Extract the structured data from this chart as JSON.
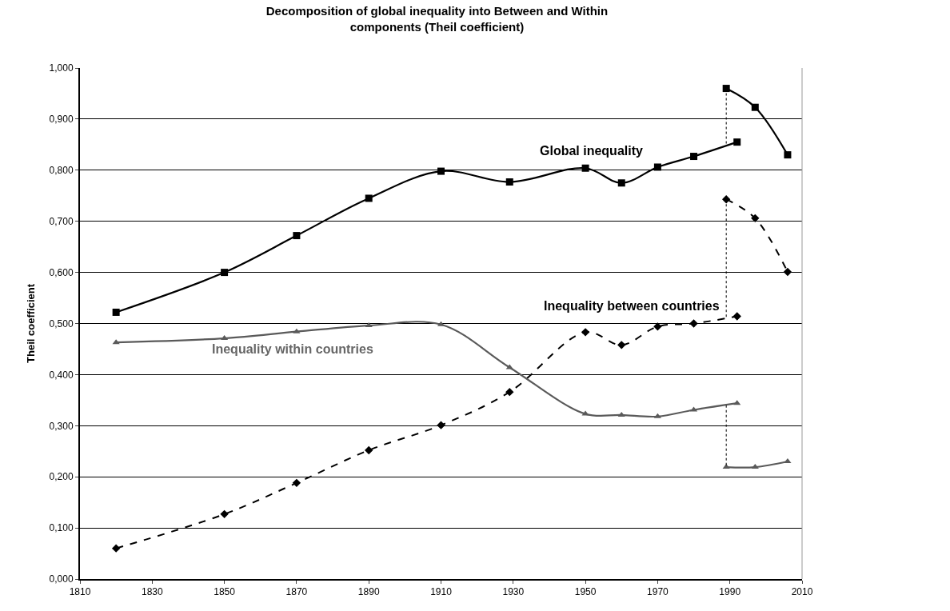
{
  "chart_data": {
    "type": "line",
    "title": "Decomposition of global inequality into Between and Within\ncomponents (Theil coefficient)",
    "ylabel": "Theil coefficient",
    "xlim": [
      1810,
      2010
    ],
    "xticks": [
      1810,
      1830,
      1850,
      1870,
      1890,
      1910,
      1930,
      1950,
      1970,
      1990,
      2010
    ],
    "ylim": [
      0,
      1
    ],
    "yticks": [
      {
        "value": 0,
        "label": "0,000"
      },
      {
        "value": 0.1,
        "label": "0,100"
      },
      {
        "value": 0.2,
        "label": "0,200"
      },
      {
        "value": 0.3,
        "label": "0,300"
      },
      {
        "value": 0.4,
        "label": "0,400"
      },
      {
        "value": 0.5,
        "label": "0,500"
      },
      {
        "value": 0.6,
        "label": "0,600"
      },
      {
        "value": 0.7,
        "label": "0,700"
      },
      {
        "value": 0.8,
        "label": "0,800"
      },
      {
        "value": 0.9,
        "label": "0,900"
      },
      {
        "value": 1,
        "label": "1,000"
      }
    ],
    "grid": "y",
    "series": [
      {
        "color": "#000000",
        "marker": "square",
        "line_style": "solid",
        "x": [
          1820,
          1850,
          1870,
          1890,
          1910,
          1929,
          1950,
          1960,
          1970,
          1980,
          1992
        ],
        "values": [
          0.522,
          0.6,
          0.672,
          0.745,
          0.798,
          0.777,
          0.804,
          0.775,
          0.806,
          0.827,
          0.855
        ]
      },
      {
        "color": "#000000",
        "marker": "diamond",
        "line_style": "dashed",
        "x": [
          1820,
          1850,
          1870,
          1890,
          1910,
          1929,
          1950,
          1960,
          1970,
          1980,
          1992
        ],
        "values": [
          0.06,
          0.127,
          0.188,
          0.252,
          0.301,
          0.366,
          0.483,
          0.458,
          0.494,
          0.5,
          0.514
        ]
      },
      {
        "color": "#5a5a5a",
        "marker": "triangle",
        "line_style": "solid",
        "x": [
          1820,
          1850,
          1870,
          1890,
          1910,
          1929,
          1950,
          1960,
          1970,
          1980,
          1992
        ],
        "values": [
          0.463,
          0.471,
          0.484,
          0.496,
          0.498,
          0.414,
          0.323,
          0.321,
          0.318,
          0.331,
          0.344
        ]
      },
      {
        "color": "#000000",
        "marker": "square",
        "line_style": "solid",
        "x": [
          1989,
          1997,
          2006
        ],
        "values": [
          0.96,
          0.923,
          0.83
        ]
      },
      {
        "color": "#000000",
        "marker": "diamond",
        "line_style": "dashed",
        "x": [
          1989,
          1997,
          2006
        ],
        "values": [
          0.743,
          0.706,
          0.601
        ]
      },
      {
        "color": "#5a5a5a",
        "marker": "triangle",
        "line_style": "solid",
        "x": [
          1989,
          1997,
          2006
        ],
        "values": [
          0.219,
          0.219,
          0.23
        ]
      },
      {
        "color": "#000000",
        "marker": "none",
        "line_style": "dotted",
        "x": [
          1989,
          1989
        ],
        "values": [
          0.96,
          0.85
        ]
      },
      {
        "color": "#000000",
        "marker": "none",
        "line_style": "dotted",
        "x": [
          1989,
          1989
        ],
        "values": [
          0.743,
          0.509
        ]
      },
      {
        "color": "#000000",
        "marker": "none",
        "line_style": "dotted",
        "x": [
          1989,
          1989
        ],
        "values": [
          0.34,
          0.219
        ]
      }
    ],
    "annotations": [
      "Global inequality",
      "Inequality between countries",
      "Inequality within countries"
    ]
  }
}
